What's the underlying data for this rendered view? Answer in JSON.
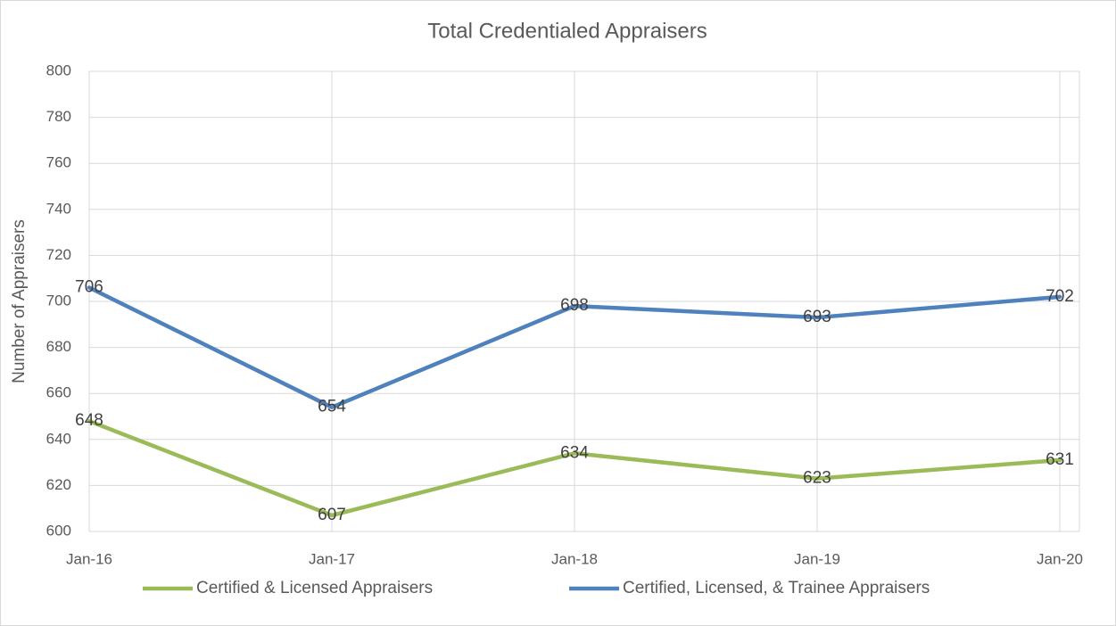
{
  "chart_data": {
    "type": "line",
    "title": "Total Credentialed Appraisers",
    "y_label": "Number of Appraisers",
    "categories": [
      "Jan-16",
      "Jan-17",
      "Jan-18",
      "Jan-19",
      "Jan-20"
    ],
    "series": [
      {
        "name": "Certified & Licensed Appraisers",
        "color": "#9bbb59",
        "values": [
          648,
          607,
          634,
          623,
          631
        ]
      },
      {
        "name": "Certified, Licensed, & Trainee Appraisers",
        "color": "#4f81bd",
        "values": [
          706,
          654,
          698,
          693,
          702
        ]
      }
    ],
    "ylim": [
      600,
      800
    ],
    "yticks": [
      600,
      620,
      640,
      660,
      680,
      700,
      720,
      740,
      760,
      780,
      800
    ],
    "grid": true,
    "legend": "bottom"
  }
}
